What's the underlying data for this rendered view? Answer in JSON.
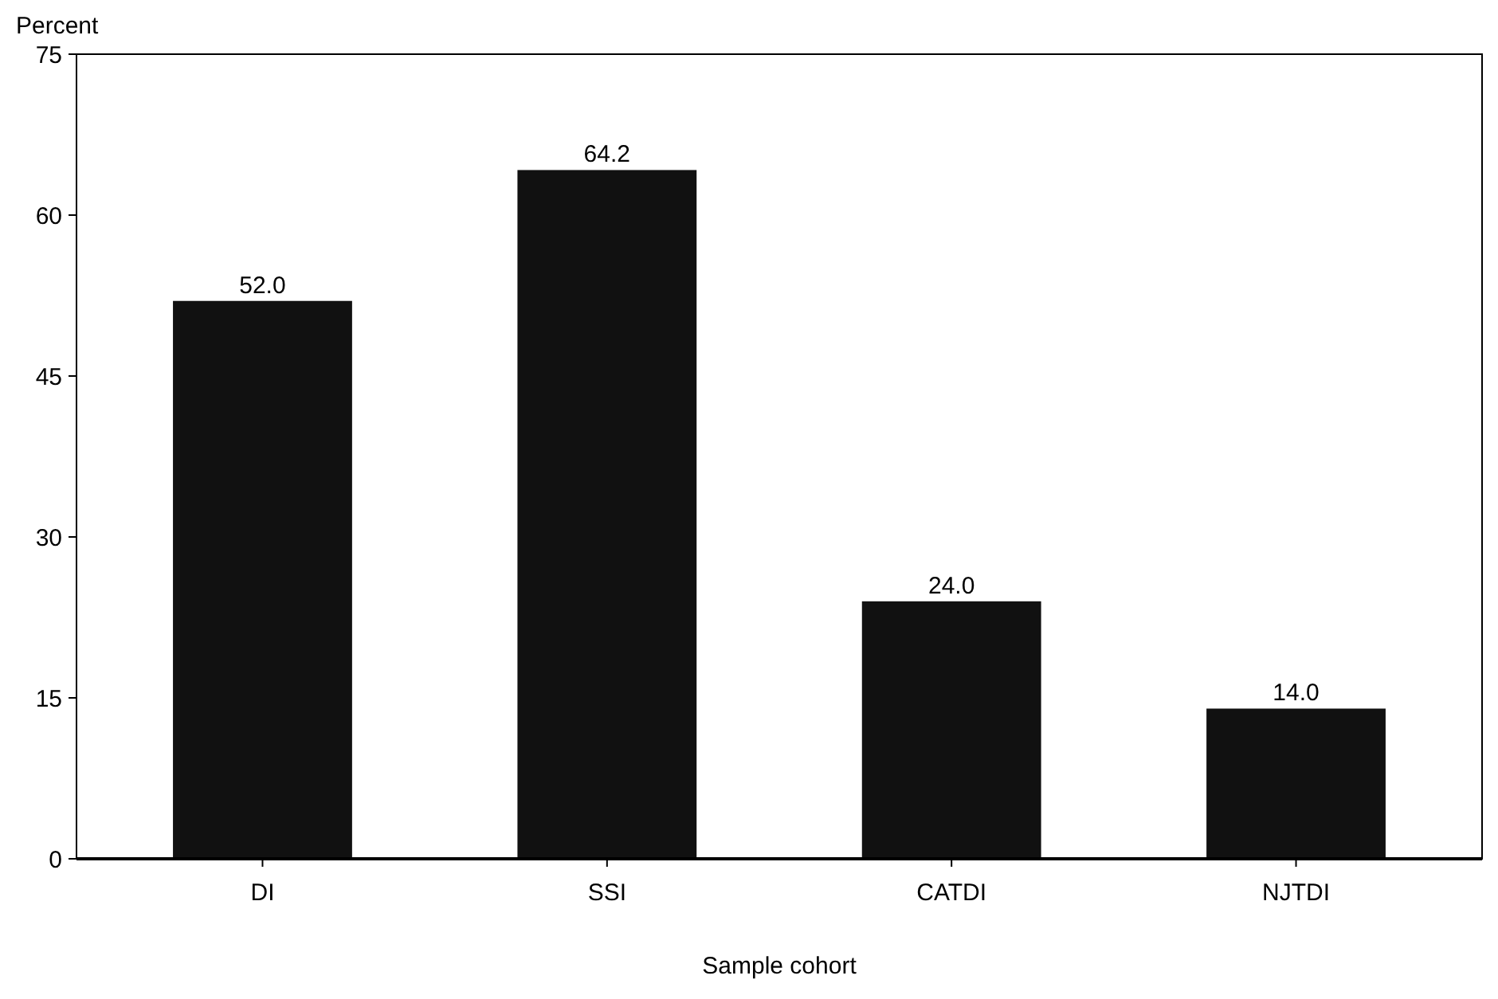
{
  "chart_data": {
    "type": "bar",
    "xlabel": "Sample cohort",
    "ylabel": "Percent",
    "categories": [
      "DI",
      "SSI",
      "CATDI",
      "NJTDI"
    ],
    "values": [
      52.0,
      64.2,
      24.0,
      14.0
    ],
    "value_labels": [
      "52.0",
      "64.2",
      "24.0",
      "14.0"
    ],
    "color": "#111111",
    "ylim": [
      0,
      75
    ],
    "yticks": [
      0,
      15,
      30,
      45,
      60,
      75
    ],
    "grid": false
  }
}
